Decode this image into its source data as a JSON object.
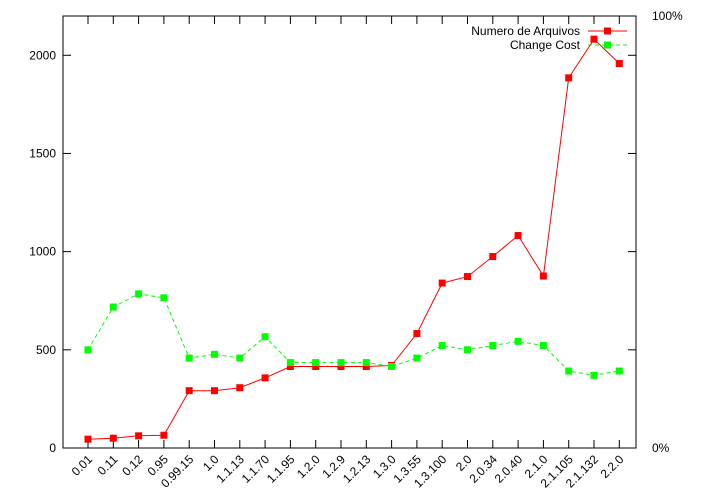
{
  "chart_data": {
    "type": "line",
    "categories": [
      "0.01",
      "0.11",
      "0.12",
      "0.95",
      "0.99.15",
      "1.0",
      "1.1.13",
      "1.1.70",
      "1.1.95",
      "1.2.0",
      "1.2.9",
      "1.2.13",
      "1.3.0",
      "1.3.55",
      "1.3.100",
      "2.0",
      "2.0.34",
      "2.0.40",
      "2.1.0",
      "2.1.105",
      "2.1.132",
      "2.2.0"
    ],
    "y_ticks": [
      "0",
      "500",
      "1000",
      "1500",
      "2000"
    ],
    "y_right_ticks": [
      "0%",
      "100%"
    ],
    "ylim": [
      0,
      2200
    ],
    "grid": false,
    "legend_position": "top-right",
    "series": [
      {
        "name": "Numero de Arquivos",
        "color": "#ff0000",
        "line_style": "solid",
        "values": [
          45,
          50,
          62,
          65,
          292,
          292,
          307,
          357,
          415,
          415,
          415,
          415,
          420,
          583,
          840,
          873,
          975,
          1082,
          876,
          1885,
          2082,
          1958
        ]
      },
      {
        "name": "Change Cost",
        "color": "#00ff00",
        "line_style": "dashed",
        "values": [
          500,
          718,
          785,
          765,
          458,
          477,
          458,
          567,
          435,
          435,
          435,
          435,
          415,
          458,
          522,
          500,
          522,
          543,
          522,
          392,
          370,
          392
        ]
      }
    ]
  }
}
